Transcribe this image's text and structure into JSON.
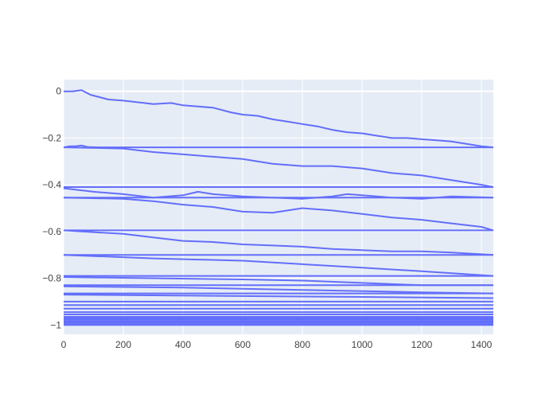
{
  "chart_data": {
    "type": "line",
    "title": "",
    "xlabel": "",
    "ylabel": "",
    "xlim": [
      0,
      1440
    ],
    "ylim": [
      -1.04,
      0.05
    ],
    "x_ticks": [
      0,
      200,
      400,
      600,
      800,
      1000,
      1200,
      1400
    ],
    "x_tick_labels": [
      "0",
      "200",
      "400",
      "600",
      "800",
      "1000",
      "1200",
      "1400"
    ],
    "y_ticks": [
      0,
      -0.2,
      -0.4,
      -0.6,
      -0.8,
      -1
    ],
    "y_tick_labels": [
      "0",
      "−0.2",
      "−0.4",
      "−0.6",
      "−0.8",
      "−1"
    ],
    "grid": true,
    "legend": "none",
    "colors": {
      "line": "#636efa",
      "plot_bg": "#e5ecf6",
      "grid": "#ffffff",
      "paper_bg": "#ffffff"
    },
    "series": [
      {
        "x": [
          0,
          30,
          60,
          90,
          150,
          200,
          270,
          300,
          360,
          400,
          450,
          500,
          560,
          600,
          650,
          700,
          750,
          800,
          850,
          900,
          950,
          1000,
          1050,
          1100,
          1150,
          1200,
          1250,
          1300,
          1350,
          1400,
          1440
        ],
        "y": [
          0.0,
          0.0,
          0.005,
          -0.015,
          -0.035,
          -0.04,
          -0.05,
          -0.055,
          -0.05,
          -0.06,
          -0.065,
          -0.07,
          -0.09,
          -0.1,
          -0.105,
          -0.12,
          -0.13,
          -0.14,
          -0.15,
          -0.165,
          -0.175,
          -0.18,
          -0.19,
          -0.2,
          -0.2,
          -0.205,
          -0.21,
          -0.215,
          -0.225,
          -0.235,
          -0.24
        ]
      },
      {
        "x": [
          0,
          20,
          40,
          60,
          80,
          120,
          1440
        ],
        "y": [
          -0.24,
          -0.235,
          -0.235,
          -0.232,
          -0.238,
          -0.24,
          -0.24
        ]
      },
      {
        "x": [
          0,
          200,
          300,
          400,
          500,
          600,
          700,
          800,
          900,
          1000,
          1100,
          1200,
          1300,
          1400,
          1440
        ],
        "y": [
          -0.24,
          -0.245,
          -0.26,
          -0.27,
          -0.28,
          -0.29,
          -0.31,
          -0.32,
          -0.32,
          -0.33,
          -0.35,
          -0.36,
          -0.38,
          -0.4,
          -0.41
        ]
      },
      {
        "x": [
          0,
          1440
        ],
        "y": [
          -0.41,
          -0.41
        ]
      },
      {
        "x": [
          0,
          100,
          200,
          300,
          400,
          450,
          500,
          600,
          700,
          800,
          900,
          950,
          1000,
          1100,
          1200,
          1300,
          1440
        ],
        "y": [
          -0.415,
          -0.43,
          -0.44,
          -0.455,
          -0.445,
          -0.43,
          -0.44,
          -0.45,
          -0.455,
          -0.46,
          -0.45,
          -0.44,
          -0.445,
          -0.455,
          -0.46,
          -0.45,
          -0.455
        ]
      },
      {
        "x": [
          0,
          1440
        ],
        "y": [
          -0.455,
          -0.455
        ]
      },
      {
        "x": [
          0,
          200,
          300,
          400,
          500,
          600,
          700,
          800,
          900,
          1000,
          1100,
          1200,
          1300,
          1400,
          1440
        ],
        "y": [
          -0.455,
          -0.46,
          -0.47,
          -0.485,
          -0.495,
          -0.515,
          -0.52,
          -0.5,
          -0.51,
          -0.525,
          -0.54,
          -0.55,
          -0.565,
          -0.58,
          -0.595
        ]
      },
      {
        "x": [
          0,
          1440
        ],
        "y": [
          -0.595,
          -0.595
        ]
      },
      {
        "x": [
          0,
          200,
          300,
          400,
          500,
          600,
          700,
          800,
          900,
          1000,
          1100,
          1200,
          1300,
          1440
        ],
        "y": [
          -0.595,
          -0.61,
          -0.625,
          -0.64,
          -0.645,
          -0.655,
          -0.66,
          -0.665,
          -0.675,
          -0.68,
          -0.685,
          -0.685,
          -0.69,
          -0.7
        ]
      },
      {
        "x": [
          0,
          1440
        ],
        "y": [
          -0.7,
          -0.7
        ]
      },
      {
        "x": [
          0,
          300,
          600,
          800,
          1000,
          1200,
          1440
        ],
        "y": [
          -0.7,
          -0.715,
          -0.725,
          -0.74,
          -0.755,
          -0.77,
          -0.79
        ]
      },
      {
        "x": [
          0,
          1440
        ],
        "y": [
          -0.79,
          -0.79
        ]
      },
      {
        "x": [
          0,
          300,
          600,
          800,
          1000,
          1100,
          1200,
          1300,
          1440
        ],
        "y": [
          -0.795,
          -0.8,
          -0.805,
          -0.81,
          -0.82,
          -0.825,
          -0.83,
          -0.83,
          -0.83
        ]
      },
      {
        "x": [
          0,
          1440
        ],
        "y": [
          -0.83,
          -0.83
        ]
      },
      {
        "x": [
          0,
          400,
          800,
          1200,
          1440
        ],
        "y": [
          -0.835,
          -0.84,
          -0.85,
          -0.86,
          -0.865
        ]
      },
      {
        "x": [
          0,
          1440
        ],
        "y": [
          -0.865,
          -0.865
        ]
      },
      {
        "x": [
          0,
          500,
          1000,
          1440
        ],
        "y": [
          -0.87,
          -0.875,
          -0.88,
          -0.885
        ]
      },
      {
        "x": [
          0,
          1440
        ],
        "y": [
          -0.9,
          -0.9
        ]
      },
      {
        "x": [
          0,
          1440
        ],
        "y": [
          -0.915,
          -0.915
        ]
      },
      {
        "x": [
          0,
          1440
        ],
        "y": [
          -0.93,
          -0.93
        ]
      },
      {
        "x": [
          0,
          1440
        ],
        "y": [
          -0.945,
          -0.945
        ]
      },
      {
        "x": [
          0,
          1440
        ],
        "y": [
          -0.955,
          -0.955
        ]
      },
      {
        "x": [
          0,
          1440
        ],
        "y": [
          -0.965,
          -0.965
        ]
      },
      {
        "x": [
          0,
          1440
        ],
        "y": [
          -0.972,
          -0.972
        ]
      },
      {
        "x": [
          0,
          1440
        ],
        "y": [
          -0.978,
          -0.978
        ]
      },
      {
        "x": [
          0,
          1440
        ],
        "y": [
          -0.984,
          -0.984
        ]
      },
      {
        "x": [
          0,
          1440
        ],
        "y": [
          -0.99,
          -0.99
        ]
      },
      {
        "x": [
          0,
          1440
        ],
        "y": [
          -0.996,
          -0.996
        ]
      },
      {
        "x": [
          0,
          1440
        ],
        "y": [
          -1.0,
          -1.0
        ]
      }
    ]
  }
}
